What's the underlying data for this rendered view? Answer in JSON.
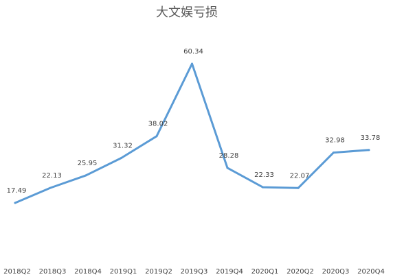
{
  "chart_data": {
    "type": "line",
    "title": "大文娱亏损",
    "xlabel": "",
    "ylabel": "",
    "categories": [
      "2018Q2",
      "2018Q3",
      "2018Q4",
      "2019Q1",
      "2019Q2",
      "2019Q3",
      "2019Q4",
      "2020Q1",
      "2020Q2",
      "2020Q3",
      "2020Q4"
    ],
    "series": [
      {
        "values": [
          17.49,
          22.13,
          25.95,
          31.32,
          38.02,
          60.34,
          28.28,
          22.33,
          22.07,
          32.98,
          33.78
        ]
      }
    ],
    "data_labels": [
      "17.49",
      "22.13",
      "25.95",
      "31.32",
      "38.02",
      "60.34",
      "28.28",
      "22.33",
      "22.07",
      "32.98",
      "33.78"
    ],
    "grid": false,
    "legend": "none",
    "colors": {
      "line": "#5B9BD5",
      "text": "#404040",
      "title": "#595959"
    }
  }
}
